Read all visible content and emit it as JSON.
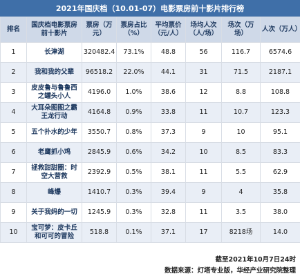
{
  "title": "2021年国庆档（10.01-07）电影票房前十影片排行榜",
  "headers": [
    "排名",
    "国庆档电影票房前十影片",
    "票房（万元）",
    "票房占比（%）",
    "平均票价（元/人）",
    "场均人次（人/场）",
    "场次（万场）",
    "人次（万人）"
  ],
  "rows": [
    {
      "rank": "1",
      "name": "长津湖",
      "boxoffice": "320482.4",
      "share": "73.1%",
      "price": "48.8",
      "perShow": "56",
      "shows": "116.7",
      "admissions": "6574.6"
    },
    {
      "rank": "2",
      "name": "我和我的父辈",
      "boxoffice": "96518.2",
      "share": "22.0%",
      "price": "44.1",
      "perShow": "31",
      "shows": "71.5",
      "admissions": "2187.1"
    },
    {
      "rank": "3",
      "name": "皮皮鲁与鲁鲁西之罐头小人",
      "boxoffice": "4196.0",
      "share": "1.0%",
      "price": "38.6",
      "perShow": "12",
      "shows": "8.8",
      "admissions": "108.8"
    },
    {
      "rank": "4",
      "name": "大耳朵图图之霸王龙行动",
      "boxoffice": "4164.8",
      "share": "0.9%",
      "price": "33.8",
      "perShow": "11",
      "shows": "10.7",
      "admissions": "123.3"
    },
    {
      "rank": "5",
      "name": "五个扑水的少年",
      "boxoffice": "3550.7",
      "share": "0.8%",
      "price": "37.3",
      "perShow": "9",
      "shows": "10",
      "admissions": "95.1"
    },
    {
      "rank": "6",
      "name": "老鹰抓小鸡",
      "boxoffice": "2845.9",
      "share": "0.6%",
      "price": "34.2",
      "perShow": "10",
      "shows": "8.5",
      "admissions": "83.3"
    },
    {
      "rank": "7",
      "name": "拯救甜甜圈：时空大营救",
      "boxoffice": "2392.9",
      "share": "0.5%",
      "price": "38.1",
      "perShow": "11",
      "shows": "5.5",
      "admissions": "62.9"
    },
    {
      "rank": "8",
      "name": "峰爆",
      "boxoffice": "1410.7",
      "share": "0.3%",
      "price": "39.4",
      "perShow": "9",
      "shows": "4",
      "admissions": "35.8"
    },
    {
      "rank": "9",
      "name": "关于我妈的一切",
      "boxoffice": "1245.9",
      "share": "0.3%",
      "price": "32.8",
      "perShow": "11",
      "shows": "3.5",
      "admissions": "38.0"
    },
    {
      "rank": "10",
      "name": "宝可梦：皮卡丘和可可的冒险",
      "boxoffice": "518.8",
      "share": "0.1%",
      "price": "37.1",
      "perShow": "17",
      "shows": "8218场",
      "admissions": "14.0"
    }
  ],
  "footer": {
    "date": "截至2021年10月7日24时",
    "source": "数据来源：灯塔专业版，华经产业研究院整理"
  }
}
